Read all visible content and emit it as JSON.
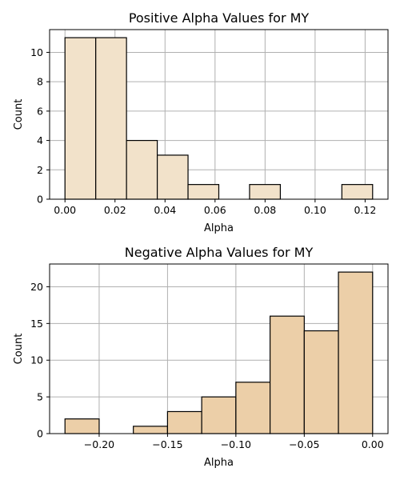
{
  "chart_data": [
    {
      "type": "bar",
      "title": "Positive Alpha Values for MY",
      "xlabel": "Alpha",
      "ylabel": "Count",
      "bar_color": "#f2e2ca",
      "bins": [
        {
          "x0": 0.0,
          "x1": 0.0123,
          "count": 11
        },
        {
          "x0": 0.0123,
          "x1": 0.0246,
          "count": 11
        },
        {
          "x0": 0.0246,
          "x1": 0.0369,
          "count": 4
        },
        {
          "x0": 0.0369,
          "x1": 0.0492,
          "count": 3
        },
        {
          "x0": 0.0492,
          "x1": 0.0615,
          "count": 1
        },
        {
          "x0": 0.0615,
          "x1": 0.0738,
          "count": 0
        },
        {
          "x0": 0.0738,
          "x1": 0.0861,
          "count": 1
        },
        {
          "x0": 0.0861,
          "x1": 0.0984,
          "count": 0
        },
        {
          "x0": 0.0984,
          "x1": 0.1107,
          "count": 0
        },
        {
          "x0": 0.1107,
          "x1": 0.123,
          "count": 1
        }
      ],
      "xlim": [
        -0.00615,
        0.12915
      ],
      "ylim": [
        0,
        11.55
      ],
      "xticks": [
        0.0,
        0.02,
        0.04,
        0.06,
        0.08,
        0.1,
        0.12
      ],
      "xtick_labels": [
        "0.00",
        "0.02",
        "0.04",
        "0.06",
        "0.08",
        "0.10",
        "0.12"
      ],
      "yticks": [
        0,
        2,
        4,
        6,
        8,
        10
      ],
      "ytick_labels": [
        "0",
        "2",
        "4",
        "6",
        "8",
        "10"
      ],
      "grid": true
    },
    {
      "type": "bar",
      "title": "Negative Alpha Values for MY",
      "xlabel": "Alpha",
      "ylabel": "Count",
      "bar_color": "#eccfa8",
      "bins": [
        {
          "x0": -0.225,
          "x1": -0.2,
          "count": 2
        },
        {
          "x0": -0.2,
          "x1": -0.175,
          "count": 0
        },
        {
          "x0": -0.175,
          "x1": -0.15,
          "count": 1
        },
        {
          "x0": -0.15,
          "x1": -0.125,
          "count": 3
        },
        {
          "x0": -0.125,
          "x1": -0.1,
          "count": 5
        },
        {
          "x0": -0.1,
          "x1": -0.075,
          "count": 7
        },
        {
          "x0": -0.075,
          "x1": -0.05,
          "count": 16
        },
        {
          "x0": -0.05,
          "x1": -0.025,
          "count": 14
        },
        {
          "x0": -0.025,
          "x1": 0.0,
          "count": 22
        }
      ],
      "xlim": [
        -0.23625,
        0.01125
      ],
      "ylim": [
        0,
        23.1
      ],
      "xticks": [
        -0.2,
        -0.15,
        -0.1,
        -0.05,
        0.0
      ],
      "xtick_labels": [
        "−0.20",
        "−0.15",
        "−0.10",
        "−0.05",
        "0.00"
      ],
      "yticks": [
        0,
        5,
        10,
        15,
        20
      ],
      "ytick_labels": [
        "0",
        "5",
        "10",
        "15",
        "20"
      ],
      "grid": true
    }
  ]
}
